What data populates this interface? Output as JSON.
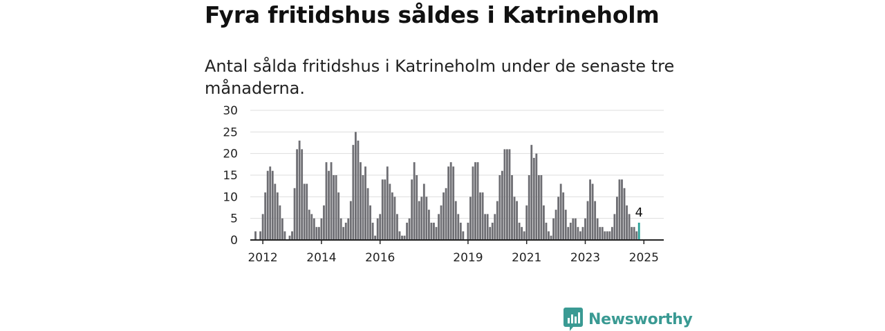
{
  "title": "Fyra fritidshus såldes i Katrineholm",
  "subtitle": "Antal sålda fritidshus i Katrineholm under de senaste tre månaderna.",
  "brand": {
    "name": "Newsworthy",
    "color": "#3a9a93",
    "icon": "newsworthy-logo-icon"
  },
  "chart_data": {
    "type": "bar",
    "title": "Fyra fritidshus såldes i Katrineholm",
    "subtitle": "Antal sålda fritidshus i Katrineholm under de senaste tre månaderna.",
    "xlabel": "",
    "ylabel": "",
    "ylim": [
      0,
      30
    ],
    "y_ticks": [
      0,
      5,
      10,
      15,
      20,
      25,
      30
    ],
    "x_ticks": [
      "2012",
      "2014",
      "2016",
      "2019",
      "2021",
      "2023",
      "2025"
    ],
    "grid": true,
    "bar_color": "#6e6e73",
    "highlight_color": "#2aa198",
    "highlight_label": "4",
    "start": "2011-09",
    "frequency": "monthly, rolling three-month total",
    "values": [
      0,
      2,
      0,
      2,
      6,
      11,
      16,
      17,
      16,
      13,
      11,
      8,
      5,
      2,
      0,
      1,
      2,
      12,
      21,
      23,
      21,
      13,
      13,
      7,
      6,
      5,
      3,
      3,
      5,
      8,
      18,
      16,
      18,
      15,
      15,
      11,
      5,
      3,
      4,
      5,
      9,
      22,
      25,
      23,
      18,
      15,
      17,
      12,
      8,
      4,
      1,
      5,
      6,
      14,
      14,
      17,
      13,
      11,
      10,
      6,
      2,
      1,
      1,
      4,
      5,
      14,
      18,
      15,
      9,
      10,
      13,
      10,
      7,
      4,
      4,
      3,
      6,
      8,
      11,
      12,
      17,
      18,
      17,
      9,
      6,
      4,
      2,
      0,
      4,
      10,
      17,
      18,
      18,
      11,
      11,
      6,
      6,
      3,
      4,
      6,
      9,
      15,
      16,
      21,
      21,
      21,
      15,
      10,
      9,
      4,
      3,
      2,
      8,
      15,
      22,
      19,
      20,
      15,
      15,
      8,
      4,
      2,
      1,
      5,
      7,
      10,
      13,
      11,
      7,
      3,
      4,
      5,
      5,
      3,
      2,
      3,
      5,
      9,
      14,
      13,
      9,
      5,
      3,
      3,
      2,
      2,
      2,
      3,
      6,
      10,
      14,
      14,
      12,
      8,
      6,
      3,
      3,
      2,
      4
    ]
  }
}
